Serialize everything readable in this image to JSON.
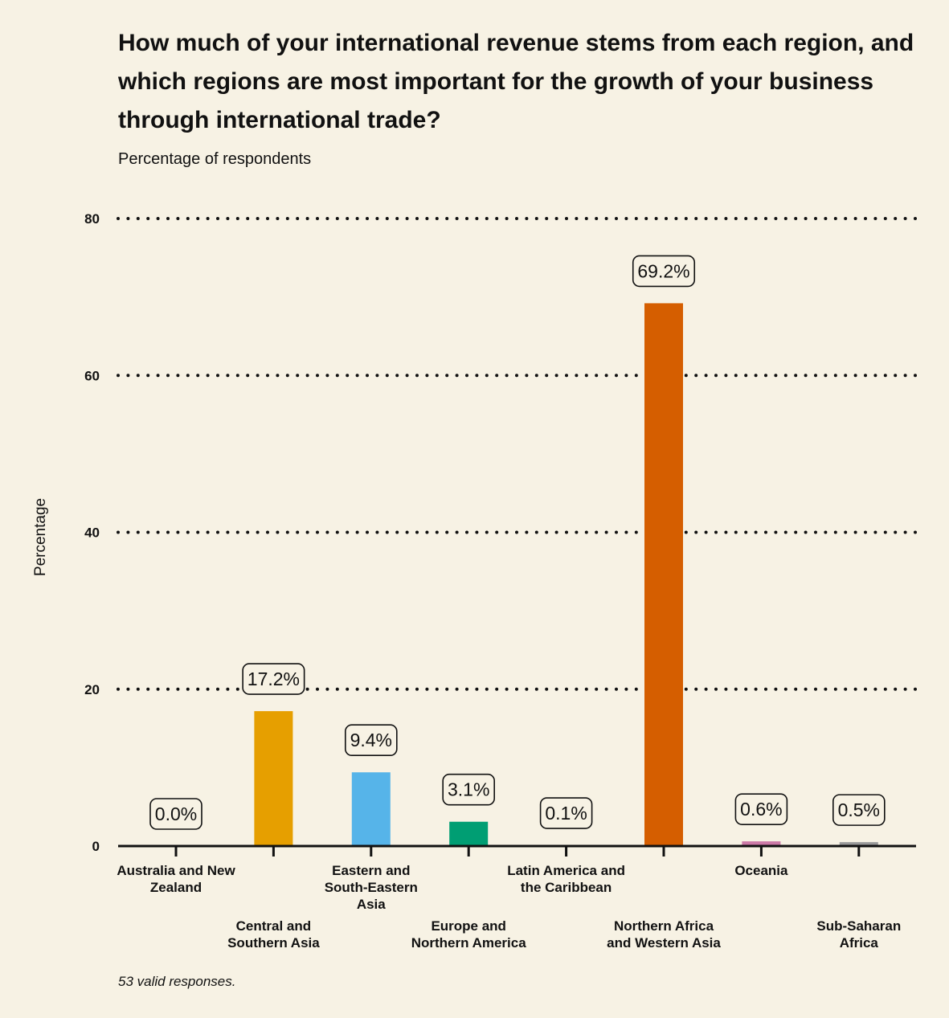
{
  "header": {
    "title": "How much of your international revenue stems from each region, and which regions are most important for the growth of your business through international trade?",
    "subtitle": "Percentage of respondents"
  },
  "footer": {
    "caption": "53 valid responses."
  },
  "chart_data": {
    "type": "bar",
    "title": "How much of your international revenue stems from each region, and which regions are most important for the growth of your business through international trade?",
    "subtitle": "Percentage of respondents",
    "ylabel": "Percentage",
    "xlabel": "",
    "ylim": [
      0,
      80
    ],
    "yticks": [
      0,
      20,
      40,
      60,
      80
    ],
    "grid": "horizontal dotted",
    "categories": [
      [
        "Australia and New",
        "Zealand"
      ],
      [
        "Central and",
        "Southern Asia"
      ],
      [
        "Eastern and",
        "South-Eastern",
        "Asia"
      ],
      [
        "Europe and",
        "Northern America"
      ],
      [
        "Latin America and",
        "the Caribbean"
      ],
      [
        "Northern Africa",
        "and Western Asia"
      ],
      [
        "Oceania"
      ],
      [
        "Sub-Saharan",
        "Africa"
      ]
    ],
    "values": [
      0.0,
      17.2,
      9.4,
      3.1,
      0.1,
      69.2,
      0.6,
      0.5
    ],
    "data_labels": [
      "0.0%",
      "17.2%",
      "9.4%",
      "3.1%",
      "0.1%",
      "69.2%",
      "0.6%",
      "0.5%"
    ],
    "colors": [
      "#f2bbbb",
      "#e69f00",
      "#56b4e9",
      "#009e73",
      "#f0e442",
      "#d55e00",
      "#cc79a7",
      "#999999"
    ]
  }
}
